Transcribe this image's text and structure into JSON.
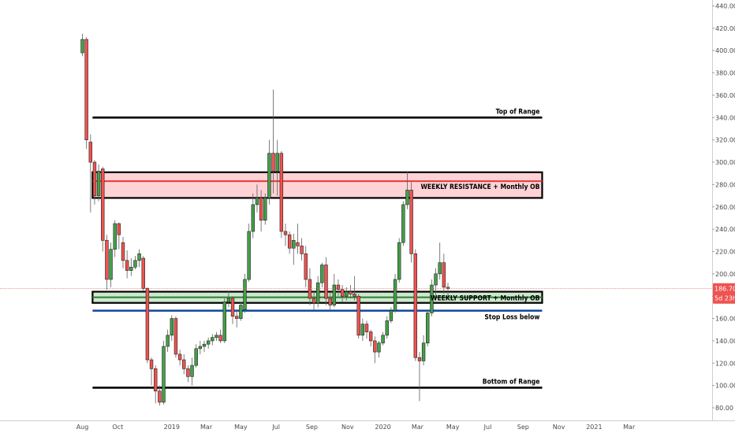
{
  "chart_data": {
    "type": "candlestick",
    "timeframe": "weekly",
    "y_axis": {
      "min": 80,
      "max": 440,
      "ticks": [
        80,
        100,
        120,
        140,
        160,
        180,
        200,
        220,
        240,
        260,
        280,
        300,
        320,
        340,
        360,
        380,
        400,
        420,
        440
      ]
    },
    "x_axis": {
      "labels": [
        {
          "text": "Aug",
          "x": 0
        },
        {
          "text": "Oct",
          "x": 8.7
        },
        {
          "text": "2019",
          "x": 22
        },
        {
          "text": "Mar",
          "x": 30.5
        },
        {
          "text": "May",
          "x": 39
        },
        {
          "text": "Jul",
          "x": 47.7
        },
        {
          "text": "Sep",
          "x": 56.5
        },
        {
          "text": "Nov",
          "x": 65.3
        },
        {
          "text": "2020",
          "x": 74
        },
        {
          "text": "Mar",
          "x": 82.5
        },
        {
          "text": "May",
          "x": 91.2
        },
        {
          "text": "Jul",
          "x": 99.8
        },
        {
          "text": "Sep",
          "x": 108.5
        },
        {
          "text": "Nov",
          "x": 117.3
        },
        {
          "text": "2021",
          "x": 126
        },
        {
          "text": "Mar",
          "x": 134.6
        }
      ]
    },
    "last_price": {
      "value": "186.70",
      "countdown": "5d 23h",
      "price": 186.7,
      "color": "#ef5350"
    },
    "colors": {
      "up": "#43a047",
      "down": "#ef5350",
      "support_fill": "#c8e6c9",
      "resistance_fill": "#ffcdd2"
    },
    "zones": [
      {
        "label": "WEEKLY RESISTANCE + Monthly OB",
        "y_low": 268,
        "y_high": 291,
        "mid": 283,
        "x_start": 2.5,
        "x_end": 113.2,
        "fill": "#ffcdd2",
        "mid_line": "#e53935"
      },
      {
        "label": "WEEKLY SUPPORT + Monthly OB",
        "y_low": 174,
        "y_high": 184,
        "mid": 179,
        "x_start": 2.5,
        "x_end": 113.2,
        "fill": "#c8e6c9",
        "mid_line": "#2e7d32"
      }
    ],
    "levels": [
      {
        "label": "Top of Range",
        "y": 340,
        "x_start": 2.5,
        "x_end": 113.2,
        "color": "#000000"
      },
      {
        "label": "Stop Loss below",
        "y": 167,
        "x_start": 2.5,
        "x_end": 113.2,
        "color": "#0d47a1"
      },
      {
        "label": "Bottom of Range",
        "y": 98,
        "x_start": 2.5,
        "x_end": 113.2,
        "color": "#000000"
      }
    ],
    "candles": [
      {
        "x": 0,
        "o": 398,
        "h": 415,
        "l": 395,
        "c": 410
      },
      {
        "x": 1,
        "o": 410,
        "h": 412,
        "l": 312,
        "c": 320
      },
      {
        "x": 2,
        "o": 318,
        "h": 325,
        "l": 255,
        "c": 300
      },
      {
        "x": 3,
        "o": 300,
        "h": 302,
        "l": 262,
        "c": 270
      },
      {
        "x": 4,
        "o": 270,
        "h": 298,
        "l": 265,
        "c": 292
      },
      {
        "x": 5,
        "o": 294,
        "h": 296,
        "l": 220,
        "c": 230
      },
      {
        "x": 6,
        "o": 230,
        "h": 235,
        "l": 186,
        "c": 195
      },
      {
        "x": 7,
        "o": 195,
        "h": 228,
        "l": 188,
        "c": 222
      },
      {
        "x": 8,
        "o": 222,
        "h": 248,
        "l": 215,
        "c": 245
      },
      {
        "x": 9,
        "o": 245,
        "h": 246,
        "l": 222,
        "c": 235
      },
      {
        "x": 10,
        "o": 228,
        "h": 233,
        "l": 205,
        "c": 212
      },
      {
        "x": 11,
        "o": 212,
        "h": 221,
        "l": 196,
        "c": 203
      },
      {
        "x": 12,
        "o": 203,
        "h": 214,
        "l": 198,
        "c": 206
      },
      {
        "x": 13,
        "o": 206,
        "h": 216,
        "l": 204,
        "c": 212
      },
      {
        "x": 14,
        "o": 212,
        "h": 222,
        "l": 206,
        "c": 218
      },
      {
        "x": 15,
        "o": 214,
        "h": 216,
        "l": 185,
        "c": 187
      },
      {
        "x": 16,
        "o": 187,
        "h": 188,
        "l": 120,
        "c": 123
      },
      {
        "x": 17,
        "o": 123,
        "h": 125,
        "l": 100,
        "c": 115
      },
      {
        "x": 18,
        "o": 115,
        "h": 118,
        "l": 84,
        "c": 95
      },
      {
        "x": 19,
        "o": 95,
        "h": 100,
        "l": 82,
        "c": 85
      },
      {
        "x": 20,
        "o": 85,
        "h": 140,
        "l": 83,
        "c": 135
      },
      {
        "x": 21,
        "o": 135,
        "h": 150,
        "l": 130,
        "c": 145
      },
      {
        "x": 22,
        "o": 145,
        "h": 163,
        "l": 140,
        "c": 160
      },
      {
        "x": 23,
        "o": 160,
        "h": 162,
        "l": 125,
        "c": 128
      },
      {
        "x": 24,
        "o": 128,
        "h": 132,
        "l": 118,
        "c": 123
      },
      {
        "x": 25,
        "o": 123,
        "h": 128,
        "l": 110,
        "c": 115
      },
      {
        "x": 26,
        "o": 115,
        "h": 118,
        "l": 103,
        "c": 108
      },
      {
        "x": 27,
        "o": 108,
        "h": 125,
        "l": 100,
        "c": 118
      },
      {
        "x": 28,
        "o": 118,
        "h": 137,
        "l": 116,
        "c": 133
      },
      {
        "x": 29,
        "o": 133,
        "h": 140,
        "l": 128,
        "c": 135
      },
      {
        "x": 30,
        "o": 135,
        "h": 140,
        "l": 130,
        "c": 137
      },
      {
        "x": 31,
        "o": 137,
        "h": 143,
        "l": 133,
        "c": 140
      },
      {
        "x": 32,
        "o": 140,
        "h": 146,
        "l": 136,
        "c": 143
      },
      {
        "x": 33,
        "o": 143,
        "h": 148,
        "l": 140,
        "c": 145
      },
      {
        "x": 34,
        "o": 145,
        "h": 150,
        "l": 138,
        "c": 140
      },
      {
        "x": 35,
        "o": 140,
        "h": 178,
        "l": 138,
        "c": 175
      },
      {
        "x": 36,
        "o": 175,
        "h": 185,
        "l": 170,
        "c": 178
      },
      {
        "x": 37,
        "o": 178,
        "h": 180,
        "l": 155,
        "c": 162
      },
      {
        "x": 38,
        "o": 162,
        "h": 168,
        "l": 152,
        "c": 160
      },
      {
        "x": 39,
        "o": 160,
        "h": 175,
        "l": 158,
        "c": 172
      },
      {
        "x": 40,
        "o": 168,
        "h": 200,
        "l": 165,
        "c": 195
      },
      {
        "x": 41,
        "o": 195,
        "h": 245,
        "l": 193,
        "c": 238
      },
      {
        "x": 42,
        "o": 238,
        "h": 272,
        "l": 232,
        "c": 262
      },
      {
        "x": 43,
        "o": 262,
        "h": 280,
        "l": 255,
        "c": 268
      },
      {
        "x": 44,
        "o": 268,
        "h": 275,
        "l": 238,
        "c": 248
      },
      {
        "x": 45,
        "o": 248,
        "h": 272,
        "l": 244,
        "c": 268
      },
      {
        "x": 46,
        "o": 268,
        "h": 320,
        "l": 262,
        "c": 308
      },
      {
        "x": 47,
        "o": 308,
        "h": 365,
        "l": 272,
        "c": 292
      },
      {
        "x": 48,
        "o": 292,
        "h": 320,
        "l": 270,
        "c": 308
      },
      {
        "x": 49,
        "o": 308,
        "h": 310,
        "l": 232,
        "c": 238
      },
      {
        "x": 50,
        "o": 238,
        "h": 245,
        "l": 225,
        "c": 235
      },
      {
        "x": 51,
        "o": 235,
        "h": 238,
        "l": 218,
        "c": 223
      },
      {
        "x": 52,
        "o": 223,
        "h": 236,
        "l": 208,
        "c": 230
      },
      {
        "x": 53,
        "o": 228,
        "h": 245,
        "l": 218,
        "c": 225
      },
      {
        "x": 54,
        "o": 225,
        "h": 232,
        "l": 212,
        "c": 218
      },
      {
        "x": 55,
        "o": 218,
        "h": 225,
        "l": 188,
        "c": 195
      },
      {
        "x": 56,
        "o": 195,
        "h": 205,
        "l": 172,
        "c": 178
      },
      {
        "x": 57,
        "o": 178,
        "h": 185,
        "l": 168,
        "c": 174
      },
      {
        "x": 58,
        "o": 174,
        "h": 198,
        "l": 170,
        "c": 192
      },
      {
        "x": 59,
        "o": 192,
        "h": 210,
        "l": 188,
        "c": 208
      },
      {
        "x": 60,
        "o": 208,
        "h": 215,
        "l": 172,
        "c": 178
      },
      {
        "x": 61,
        "o": 178,
        "h": 183,
        "l": 168,
        "c": 172
      },
      {
        "x": 62,
        "o": 172,
        "h": 200,
        "l": 170,
        "c": 190
      },
      {
        "x": 63,
        "o": 190,
        "h": 195,
        "l": 180,
        "c": 186
      },
      {
        "x": 64,
        "o": 186,
        "h": 190,
        "l": 175,
        "c": 180
      },
      {
        "x": 65,
        "o": 180,
        "h": 188,
        "l": 176,
        "c": 184
      },
      {
        "x": 66,
        "o": 184,
        "h": 190,
        "l": 178,
        "c": 182
      },
      {
        "x": 67,
        "o": 182,
        "h": 198,
        "l": 176,
        "c": 180
      },
      {
        "x": 68,
        "o": 180,
        "h": 182,
        "l": 142,
        "c": 145
      },
      {
        "x": 69,
        "o": 145,
        "h": 160,
        "l": 140,
        "c": 155
      },
      {
        "x": 70,
        "o": 155,
        "h": 158,
        "l": 142,
        "c": 148
      },
      {
        "x": 71,
        "o": 148,
        "h": 150,
        "l": 135,
        "c": 140
      },
      {
        "x": 72,
        "o": 140,
        "h": 144,
        "l": 120,
        "c": 130
      },
      {
        "x": 73,
        "o": 130,
        "h": 140,
        "l": 125,
        "c": 138
      },
      {
        "x": 74,
        "o": 138,
        "h": 148,
        "l": 136,
        "c": 145
      },
      {
        "x": 75,
        "o": 145,
        "h": 162,
        "l": 142,
        "c": 158
      },
      {
        "x": 76,
        "o": 158,
        "h": 170,
        "l": 156,
        "c": 167
      },
      {
        "x": 77,
        "o": 167,
        "h": 200,
        "l": 165,
        "c": 195
      },
      {
        "x": 78,
        "o": 195,
        "h": 232,
        "l": 192,
        "c": 228
      },
      {
        "x": 79,
        "o": 228,
        "h": 265,
        "l": 225,
        "c": 262
      },
      {
        "x": 80,
        "o": 262,
        "h": 292,
        "l": 258,
        "c": 275
      },
      {
        "x": 81,
        "o": 275,
        "h": 282,
        "l": 210,
        "c": 218
      },
      {
        "x": 82,
        "o": 218,
        "h": 222,
        "l": 122,
        "c": 125
      },
      {
        "x": 83,
        "o": 125,
        "h": 130,
        "l": 86,
        "c": 122
      },
      {
        "x": 84,
        "o": 122,
        "h": 145,
        "l": 118,
        "c": 138
      },
      {
        "x": 85,
        "o": 138,
        "h": 168,
        "l": 135,
        "c": 165
      },
      {
        "x": 86,
        "o": 165,
        "h": 195,
        "l": 162,
        "c": 190
      },
      {
        "x": 87,
        "o": 190,
        "h": 205,
        "l": 180,
        "c": 200
      },
      {
        "x": 88,
        "o": 200,
        "h": 228,
        "l": 195,
        "c": 210
      },
      {
        "x": 89,
        "o": 210,
        "h": 218,
        "l": 182,
        "c": 188
      },
      {
        "x": 90,
        "o": 188,
        "h": 192,
        "l": 180,
        "c": 186.7
      }
    ]
  }
}
